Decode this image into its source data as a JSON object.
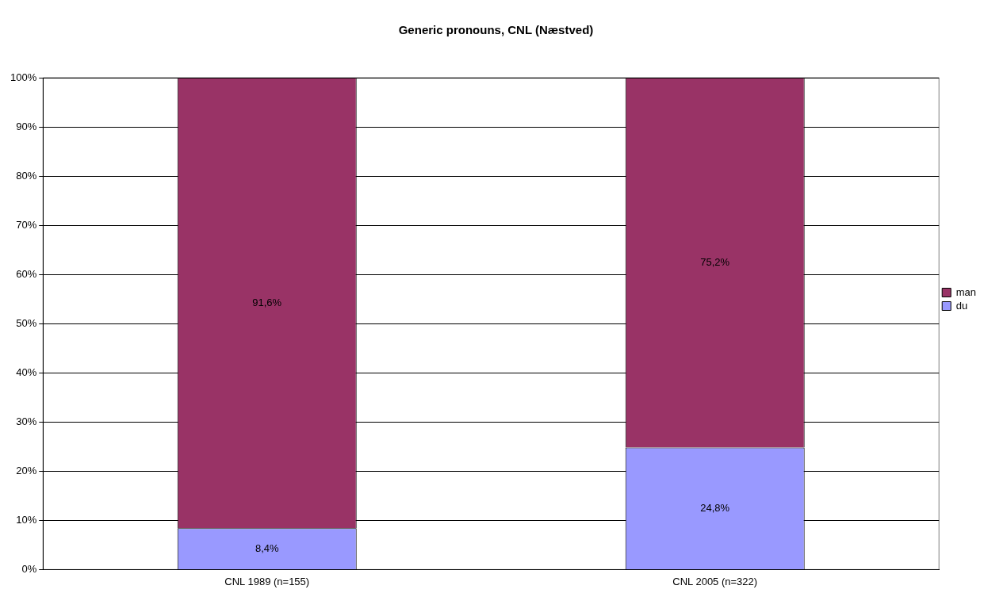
{
  "chart_data": {
    "type": "bar",
    "title": "Generic pronouns, CNL (Næstved)",
    "categories": [
      "CNL 1989 (n=155)",
      "CNL 2005 (n=322)"
    ],
    "stacked": true,
    "series": [
      {
        "name": "du",
        "color": "#9999ff",
        "values": [
          8.4,
          24.8
        ],
        "value_labels": [
          "8,4%",
          "24,8%"
        ]
      },
      {
        "name": "man",
        "color": "#993366",
        "values": [
          91.6,
          75.2
        ],
        "value_labels": [
          "91,6%",
          "75,2%"
        ]
      }
    ],
    "ylim": [
      0,
      100
    ],
    "yticks": [
      {
        "value": 0,
        "label": "0%"
      },
      {
        "value": 10,
        "label": "10%"
      },
      {
        "value": 20,
        "label": "20%"
      },
      {
        "value": 30,
        "label": "30%"
      },
      {
        "value": 40,
        "label": "40%"
      },
      {
        "value": 50,
        "label": "50%"
      },
      {
        "value": 60,
        "label": "60%"
      },
      {
        "value": 70,
        "label": "70%"
      },
      {
        "value": 80,
        "label": "80%"
      },
      {
        "value": 90,
        "label": "90%"
      },
      {
        "value": 100,
        "label": "100%"
      }
    ],
    "grid": "y",
    "legend": "right"
  }
}
